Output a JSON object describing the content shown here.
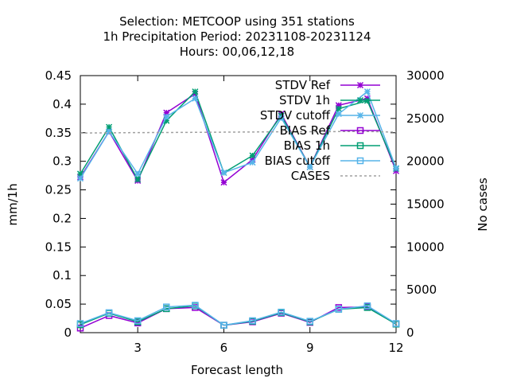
{
  "chart_data": {
    "type": "line",
    "title": [
      "Selection: METCOOP using   351 stations",
      "1h Precipitation   Period: 20231108-20231124",
      "Hours:  00,06,12,18"
    ],
    "xlabel": "Forecast length",
    "ylabel": "mm/1h",
    "y2label": "No cases",
    "xlim": [
      1,
      12
    ],
    "ylim": [
      0,
      0.45
    ],
    "y2lim": [
      0,
      30000
    ],
    "xticks": [
      3,
      6,
      9,
      12
    ],
    "yticks": [
      0,
      0.05,
      0.1,
      0.15,
      0.2,
      0.25,
      0.3,
      0.35,
      0.4,
      0.45
    ],
    "ytick_labels": [
      "0",
      "0.05",
      "0.1",
      "0.15",
      "0.2",
      "0.25",
      "0.3",
      "0.35",
      "0.4",
      "0.45"
    ],
    "y2ticks": [
      0,
      5000,
      10000,
      15000,
      20000,
      25000,
      30000
    ],
    "legend_position": "top-right",
    "x": [
      1,
      2,
      3,
      4,
      5,
      6,
      7,
      8,
      9,
      10,
      11,
      12
    ],
    "series": [
      {
        "name": "STDV Ref",
        "color": "#9400d3",
        "marker": "x",
        "axis": "y1",
        "values": [
          0.272,
          0.352,
          0.266,
          0.385,
          0.418,
          0.263,
          0.303,
          0.383,
          0.29,
          0.398,
          0.41,
          0.283
        ]
      },
      {
        "name": "STDV 1h",
        "color": "#009e73",
        "marker": "x",
        "axis": "y1",
        "values": [
          0.278,
          0.36,
          0.268,
          0.371,
          0.422,
          0.28,
          0.31,
          0.38,
          0.29,
          0.392,
          0.406,
          0.287
        ]
      },
      {
        "name": "STDV cutoff",
        "color": "#56b4e9",
        "marker": "x",
        "axis": "y1",
        "values": [
          0.27,
          0.352,
          0.278,
          0.378,
          0.41,
          0.28,
          0.298,
          0.376,
          0.29,
          0.383,
          0.422,
          0.288
        ]
      },
      {
        "name": "BIAS Ref",
        "color": "#9400d3",
        "marker": "square",
        "axis": "y1",
        "values": [
          0.008,
          0.03,
          0.017,
          0.042,
          0.044,
          0.013,
          0.019,
          0.034,
          0.018,
          0.044,
          0.045,
          0.015
        ]
      },
      {
        "name": "BIAS 1h",
        "color": "#009e73",
        "marker": "square",
        "axis": "y1",
        "values": [
          0.014,
          0.034,
          0.019,
          0.042,
          0.047,
          0.013,
          0.02,
          0.035,
          0.019,
          0.041,
          0.044,
          0.015
        ]
      },
      {
        "name": "BIAS cutoff",
        "color": "#56b4e9",
        "marker": "square",
        "axis": "y1",
        "values": [
          0.016,
          0.035,
          0.021,
          0.045,
          0.048,
          0.013,
          0.021,
          0.036,
          0.02,
          0.041,
          0.047,
          0.016
        ]
      },
      {
        "name": "CASES",
        "color": "#a0a0a0",
        "marker": "none",
        "dashed": true,
        "axis": "y2",
        "values": [
          23300,
          23320,
          23350,
          23360,
          23380,
          23400,
          23420,
          23440,
          23450,
          23470,
          23480,
          23400
        ]
      }
    ]
  }
}
